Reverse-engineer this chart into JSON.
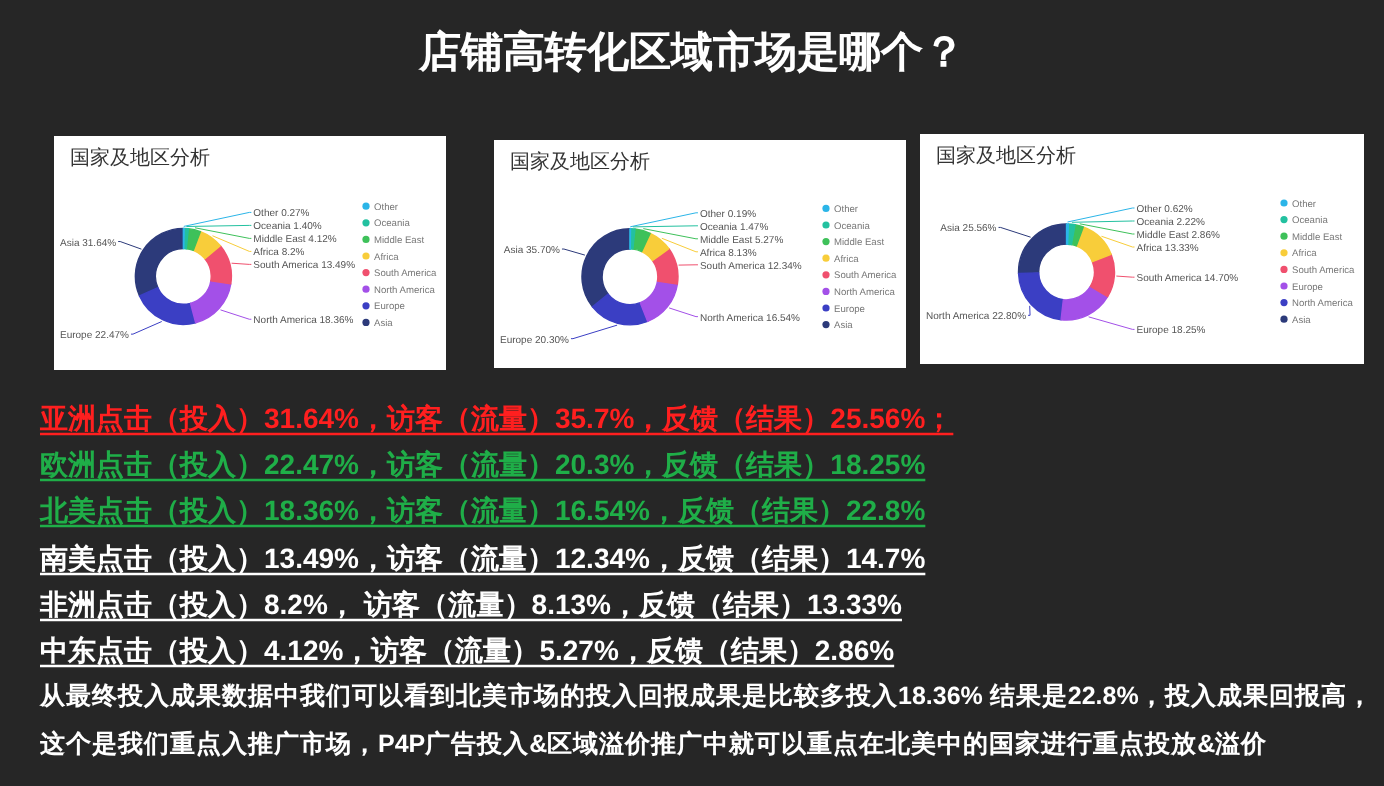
{
  "chart_data": [
    {
      "type": "other",
      "title": "店铺高转化区域市场是哪个？"
    },
    {
      "type": "donut",
      "title": "国家及地区分析",
      "categories": [
        "Other",
        "Oceania",
        "Middle East",
        "Africa",
        "South America",
        "North America",
        "Europe",
        "Asia"
      ],
      "values": [
        0.27,
        1.4,
        4.12,
        8.2,
        13.49,
        18.36,
        22.47,
        31.64
      ],
      "value_labels": [
        "0.27%",
        "1.40%",
        "4.12%",
        "8.2%",
        "13.49%",
        "18.36%",
        "22.47%",
        "31.64%"
      ],
      "colors": [
        "#2bb5e8",
        "#23c1a0",
        "#3ec15a",
        "#f8cd3a",
        "#f0506e",
        "#a350e8",
        "#3b3fc4",
        "#2c3a7a"
      ],
      "legend": "right"
    },
    {
      "type": "donut",
      "title": "国家及地区分析",
      "categories": [
        "Other",
        "Oceania",
        "Middle East",
        "Africa",
        "South America",
        "North America",
        "Europe",
        "Asia"
      ],
      "values": [
        0.19,
        1.47,
        5.27,
        8.13,
        12.34,
        16.54,
        20.3,
        35.7
      ],
      "value_labels": [
        "0.19%",
        "1.47%",
        "5.27%",
        "8.13%",
        "12.34%",
        "16.54%",
        "20.30%",
        "35.70%"
      ],
      "colors": [
        "#2bb5e8",
        "#23c1a0",
        "#3ec15a",
        "#f8cd3a",
        "#f0506e",
        "#a350e8",
        "#3b3fc4",
        "#2c3a7a"
      ],
      "legend": "right"
    },
    {
      "type": "donut",
      "title": "国家及地区分析",
      "categories": [
        "Other",
        "Oceania",
        "Middle East",
        "Africa",
        "South America",
        "Europe",
        "North America",
        "Asia"
      ],
      "values": [
        0.62,
        2.22,
        2.86,
        13.33,
        14.7,
        18.25,
        22.8,
        25.56
      ],
      "value_labels": [
        "0.62%",
        "2.22%",
        "2.86%",
        "13.33%",
        "14.70%",
        "18.25%",
        "22.80%",
        "25.56%"
      ],
      "colors": [
        "#2bb5e8",
        "#23c1a0",
        "#3ec15a",
        "#f8cd3a",
        "#f0506e",
        "#a350e8",
        "#3b3fc4",
        "#2c3a7a"
      ],
      "legend": "right"
    },
    {
      "type": "other",
      "annotations": [
        "亚洲点击（投入）31.64%，访客（流量）35.7%，反馈（结果）25.56%；",
        "欧洲点击（投入）22.47%，访客（流量）20.3%，反馈（结果）18.25%",
        "北美点击（投入）18.36%，访客（流量）16.54%，反馈（结果）22.8%",
        "南美点击（投入）13.49%，访客（流量）12.34%，反馈（结果）14.7%",
        "非洲点击（投入）8.2%， 访客（流量）8.13%，反馈（结果）13.33%",
        "中东点击（投入）4.12%，访客（流量）5.27%，反馈（结果）2.86%",
        "从最终投入成果数据中我们可以看到北美市场的投入回报成果是比较多投入18.36% 结果是22.8%，投入成果回报高，",
        "这个是我们重点入推广市场，P4P广告投入&区域溢价推广中就可以重点在北美中的国家进行重点投放&溢价"
      ]
    }
  ]
}
